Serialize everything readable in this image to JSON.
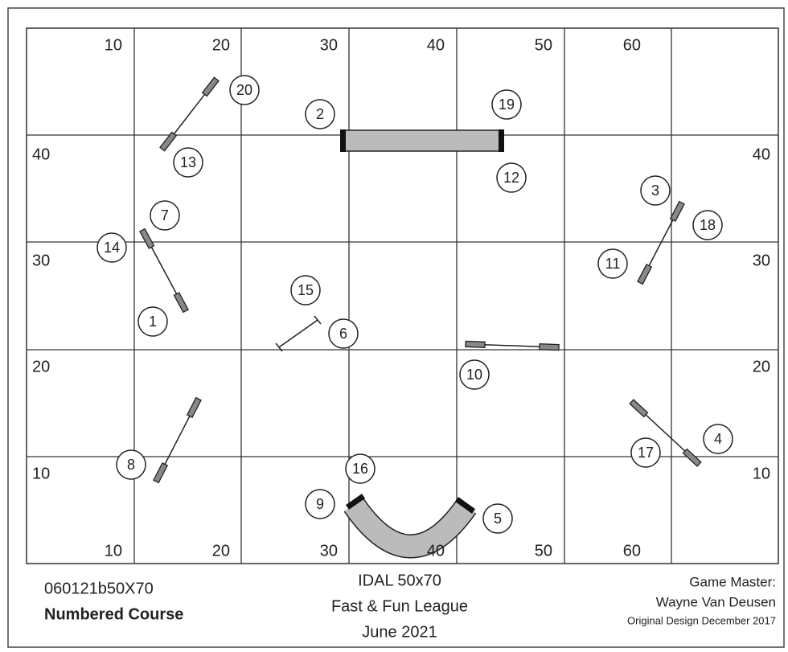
{
  "grid_labels": {
    "top": [
      10,
      20,
      30,
      40,
      50,
      60
    ],
    "bottom": [
      10,
      20,
      30,
      40,
      50,
      60
    ],
    "left": [
      40,
      30,
      20,
      10
    ],
    "right": [
      40,
      30,
      20,
      10
    ]
  },
  "markers": [
    1,
    2,
    3,
    4,
    5,
    6,
    7,
    8,
    9,
    10,
    11,
    12,
    13,
    14,
    15,
    16,
    17,
    18,
    19,
    20
  ],
  "footer": {
    "course_id": "060121b50X70",
    "course_type": "Numbered Course",
    "event_lines": [
      "IDAL 50x70",
      "Fast & Fun League",
      "June 2021"
    ],
    "credit_lines": [
      "Game Master:",
      "Wayne Van Deusen",
      "Original Design December 2017"
    ]
  }
}
